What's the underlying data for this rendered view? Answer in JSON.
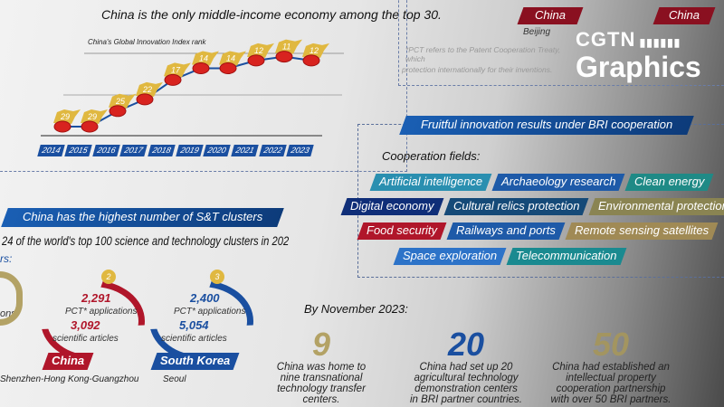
{
  "top": {
    "headline": "China is the only middle-income economy among the top 30.",
    "chart_label": "China's Global Innovation Index rank",
    "years": [
      "2014",
      "2015",
      "2016",
      "2017",
      "2018",
      "2019",
      "2020",
      "2021",
      "2022",
      "2023"
    ],
    "ranks": [
      29,
      29,
      25,
      22,
      17,
      14,
      14,
      12,
      11,
      12
    ]
  },
  "right_top": {
    "city1_country": "China",
    "city1": "Beijing",
    "city2_country": "China",
    "footnote1": "*PCT refers to the Patent Cooperation Treaty, which",
    "footnote2": "protection internationally for their inventions."
  },
  "logo": {
    "line1": "CGTN",
    "line2": "Graphics"
  },
  "clusters": {
    "banner": "China has the highest number of S&T clusters",
    "subtitle": "24 of the world's top 100 science and technology clusters in 202",
    "partial_label": "rs:",
    "partial_left": "ons",
    "items": [
      {
        "rank": "2",
        "pct": "2,291",
        "pct_label": "PCT* applications",
        "articles": "3,092",
        "articles_label": "scientific articles",
        "country": "China",
        "city": "Shenzhen-Hong Kong-Guangzhou",
        "color": "#b0162a"
      },
      {
        "rank": "3",
        "pct": "2,400",
        "pct_label": "PCT* applications",
        "articles": "5,054",
        "articles_label": "scientific articles",
        "country": "South Korea",
        "city": "Seoul",
        "color": "#1a4fa0"
      }
    ]
  },
  "bri": {
    "banner": "Fruitful innovation results under BRI cooperation",
    "fields_label": "Cooperation fields:",
    "fields": [
      {
        "label": "Artificial intelligence",
        "color": "#2a8fb0"
      },
      {
        "label": "Archaeology research",
        "color": "#1e5aa8"
      },
      {
        "label": "Clean energy",
        "color": "#1f8a86"
      },
      {
        "label": "Digital economy",
        "color": "#0f2e78"
      },
      {
        "label": "Cultural relics protection",
        "color": "#154a78"
      },
      {
        "label": "Environmental protection",
        "color": "#8a8452"
      },
      {
        "label": "Food security",
        "color": "#b0162a"
      },
      {
        "label": "Railways and ports",
        "color": "#1e5aa8"
      },
      {
        "label": "Remote sensing satellites",
        "color": "#a08a55"
      },
      {
        "label": "Space exploration",
        "color": "#2d73c8"
      },
      {
        "label": "Telecommunication",
        "color": "#1a8a90"
      }
    ]
  },
  "stats": {
    "date_label": "By November 2023:",
    "items": [
      {
        "number": "9",
        "color": "#b3a265",
        "lines": [
          "China was home to",
          "nine transnational",
          "technology transfer",
          "centers."
        ]
      },
      {
        "number": "20",
        "color": "#1a4fa0",
        "lines": [
          "China had set up 20",
          "agricultural technology",
          "demonstration centers",
          "in BRI partner countries."
        ]
      },
      {
        "number": "50",
        "color": "#a39560",
        "lines": [
          "China had established an",
          "intellectual property",
          "cooperation partnership",
          "with over 50 BRI partners."
        ]
      }
    ]
  }
}
